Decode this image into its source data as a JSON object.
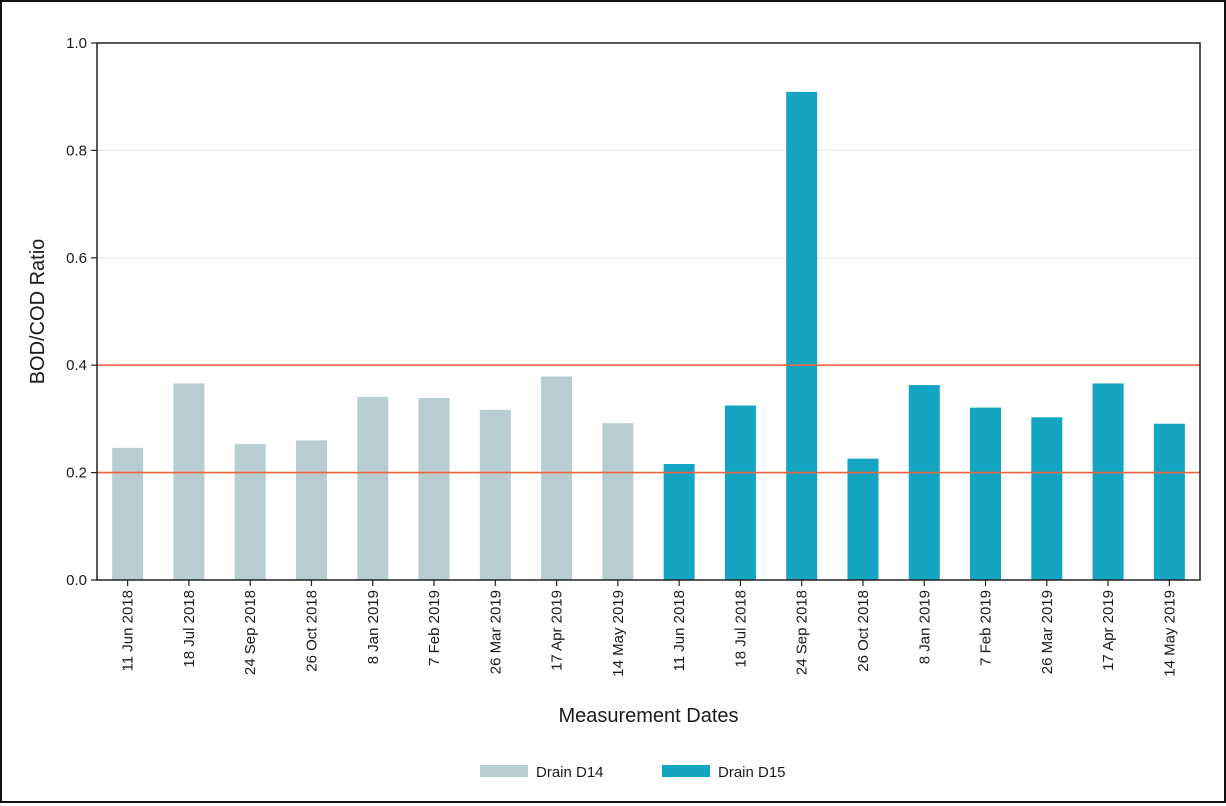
{
  "chart_data": {
    "type": "bar",
    "title": "",
    "xlabel": "Measurement Dates",
    "ylabel": "BOD/COD Ratio",
    "ylim": [
      0,
      1.0
    ],
    "yticks": [
      "0.0",
      "0.2",
      "0.4",
      "0.6",
      "0.8",
      "1.0"
    ],
    "grid": true,
    "legend_position": "bottom",
    "reference_lines": [
      {
        "value": 0.2,
        "color": "#f0643c"
      },
      {
        "value": 0.4,
        "color": "#f0643c"
      }
    ],
    "categories": [
      "11 Jun 2018",
      "18 Jul 2018",
      "24 Sep 2018",
      "26 Oct 2018",
      "8 Jan 2019",
      "7 Feb 2019",
      "26 Mar 2019",
      "17 Apr 2019",
      "14 May 2019",
      "11 Jun 2018",
      "18 Jul 2018",
      "24 Sep 2018",
      "26 Oct 2018",
      "8 Jan 2019",
      "7 Feb 2019",
      "26 Mar 2019",
      "17 Apr 2019",
      "14 May 2019"
    ],
    "series": [
      {
        "name": "Drain D14",
        "color": "#b7cdd2",
        "values": [
          0.246,
          0.366,
          0.253,
          0.26,
          0.341,
          0.339,
          0.317,
          0.379,
          0.292,
          null,
          null,
          null,
          null,
          null,
          null,
          null,
          null,
          null
        ]
      },
      {
        "name": "Drain D15",
        "color": "#14a5c3",
        "values": [
          null,
          null,
          null,
          null,
          null,
          null,
          null,
          null,
          null,
          0.216,
          0.325,
          0.909,
          0.226,
          0.363,
          0.321,
          0.303,
          0.366,
          0.291
        ]
      }
    ]
  }
}
